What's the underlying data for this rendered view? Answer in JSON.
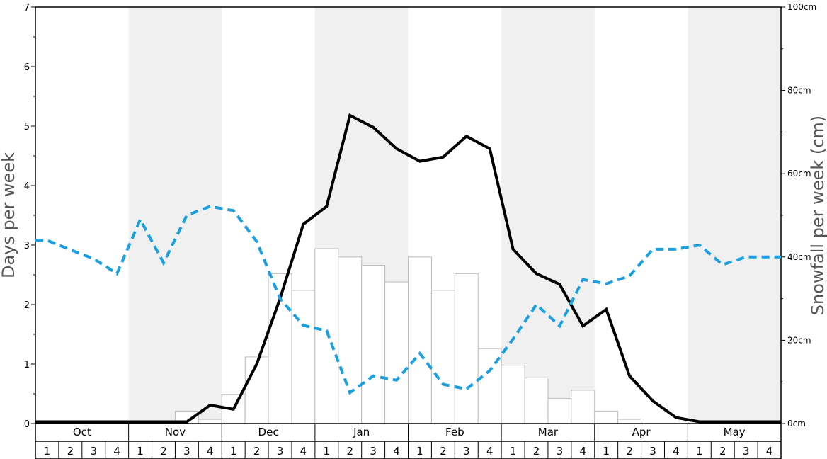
{
  "chart_data": {
    "type": "bar+line",
    "months": [
      "Oct",
      "Nov",
      "Dec",
      "Jan",
      "Feb",
      "Mar",
      "Apr",
      "May"
    ],
    "weeks": [
      "1",
      "2",
      "3",
      "4"
    ],
    "ylabel_left": "Days per week",
    "ylabel_right": "Snowfall per week (cm)",
    "ylim_left": [
      0,
      7
    ],
    "ylim_right": [
      0,
      100
    ],
    "left_ticks": [
      "0",
      "1",
      "2",
      "3",
      "4",
      "5",
      "6",
      "7"
    ],
    "right_ticks": [
      "0cm",
      "20cm",
      "40cm",
      "60cm",
      "80cm",
      "100cm"
    ],
    "colors": {
      "black_line": "#000000",
      "blue_dashed": "#1a9fe0",
      "shade": "#f0f0f0",
      "bar_stroke": "#bbbbbb"
    },
    "series": [
      {
        "kind": "bar",
        "axis": "right",
        "values": [
          0,
          0,
          0,
          0,
          0,
          0,
          3,
          1,
          7,
          16,
          36,
          32,
          42,
          40,
          38,
          34,
          40,
          32,
          36,
          18,
          14,
          11,
          6,
          8,
          3,
          1,
          0,
          0,
          0,
          0,
          0,
          0
        ]
      },
      {
        "kind": "line",
        "style": "solid",
        "axis": "left",
        "values": [
          0.03,
          0.03,
          0.03,
          0.03,
          0.03,
          0.03,
          0.03,
          0.31,
          0.24,
          1.0,
          2.1,
          3.35,
          3.65,
          5.18,
          4.98,
          4.62,
          4.41,
          4.48,
          4.83,
          4.62,
          2.93,
          2.52,
          2.34,
          1.64,
          1.92,
          0.8,
          0.38,
          0.1,
          0.03,
          0.03,
          0.03,
          0.03
        ]
      },
      {
        "kind": "line",
        "style": "dashed",
        "axis": "left",
        "values": [
          3.08,
          2.92,
          2.77,
          2.52,
          3.43,
          2.7,
          3.5,
          3.65,
          3.58,
          3.06,
          2.1,
          1.65,
          1.56,
          0.52,
          0.8,
          0.73,
          1.18,
          0.66,
          0.58,
          0.89,
          1.42,
          2.0,
          1.64,
          2.42,
          2.35,
          2.48,
          2.93,
          2.93,
          3.0,
          2.67,
          2.8,
          2.8
        ]
      }
    ]
  }
}
